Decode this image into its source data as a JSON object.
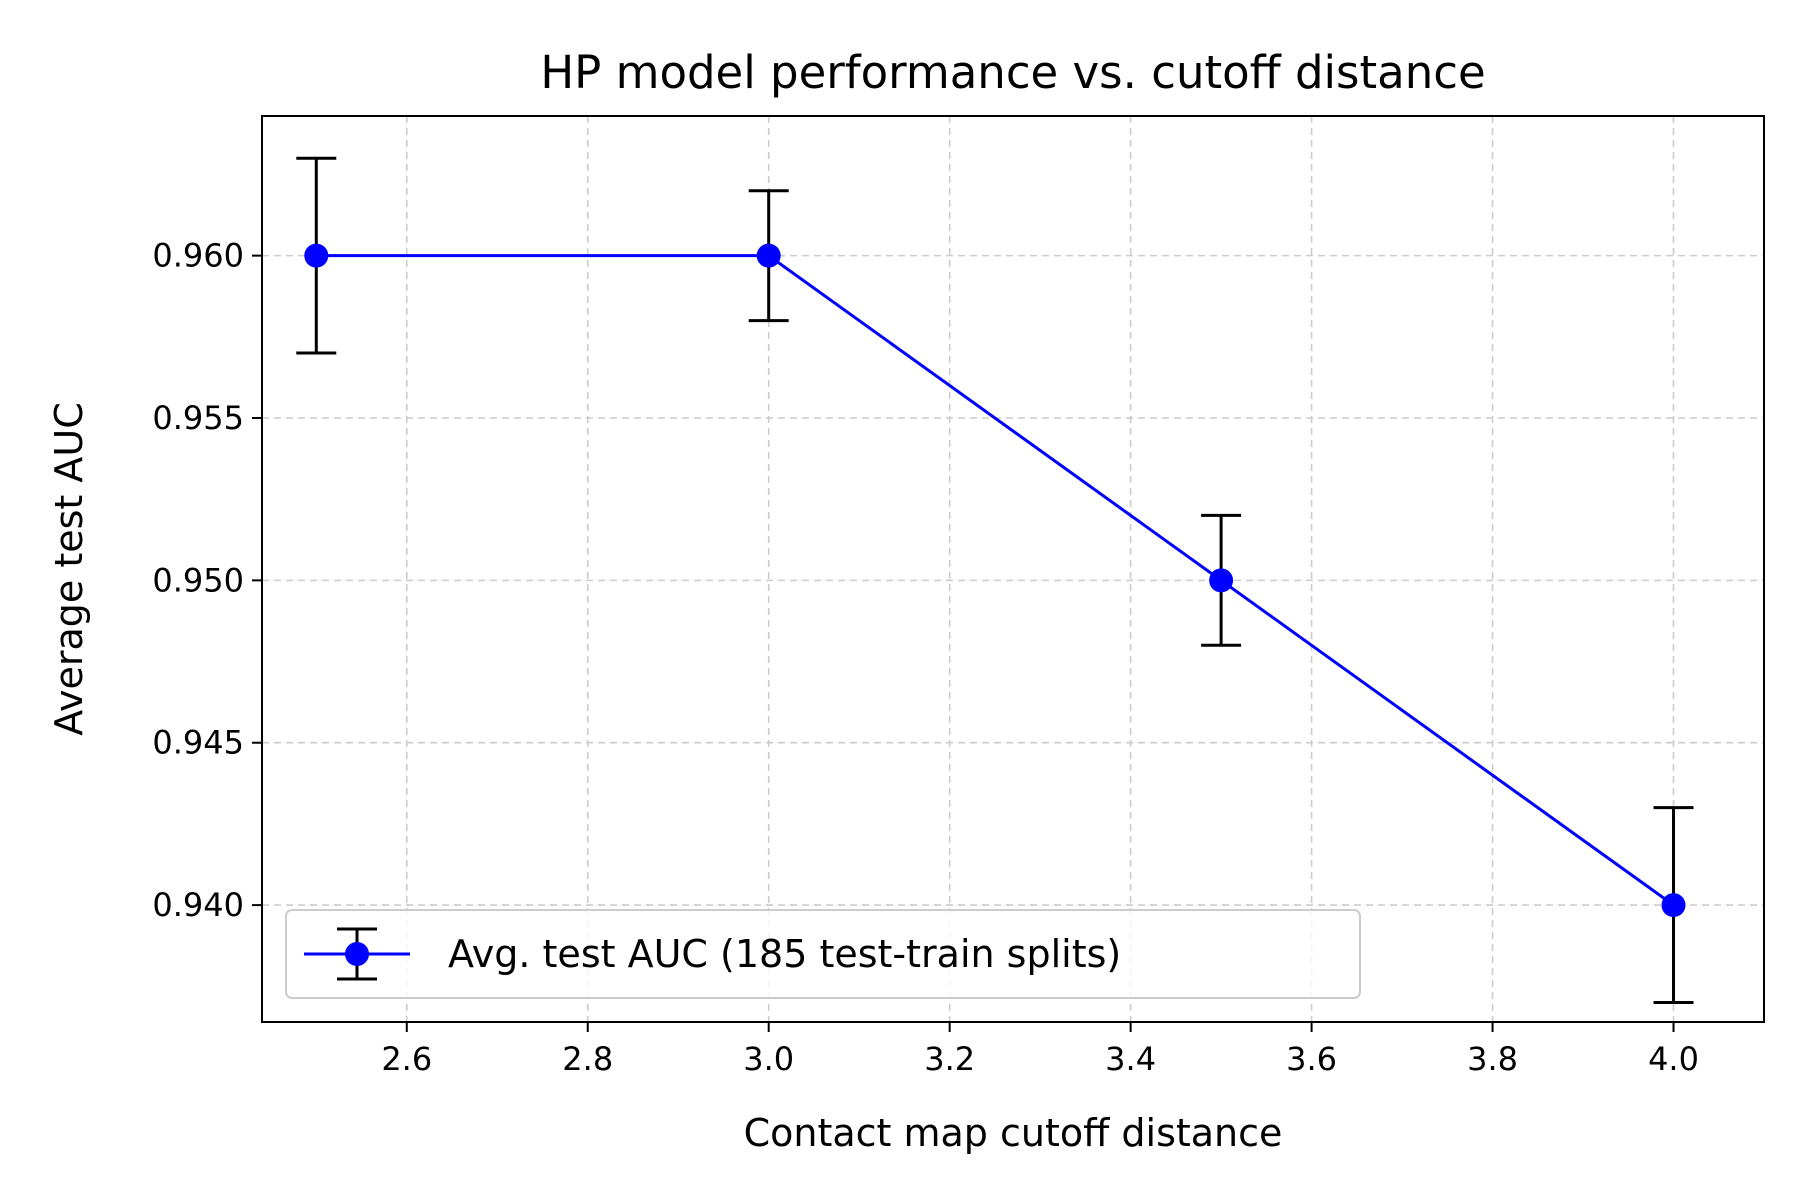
{
  "chart_data": {
    "type": "line",
    "title": "HP model performance vs. cutoff distance",
    "xlabel": "Contact map cutoff distance",
    "ylabel": "Average test AUC",
    "xlim": [
      2.44,
      4.1
    ],
    "ylim": [
      0.9364,
      0.9643
    ],
    "x_ticks": [
      2.6,
      2.8,
      3.0,
      3.2,
      3.4,
      3.6,
      3.8,
      4.0
    ],
    "x_tick_labels": [
      "2.6",
      "2.8",
      "3.0",
      "3.2",
      "3.4",
      "3.6",
      "3.8",
      "4.0"
    ],
    "y_ticks": [
      0.94,
      0.945,
      0.95,
      0.955,
      0.96
    ],
    "y_tick_labels": [
      "0.940",
      "0.945",
      "0.950",
      "0.955",
      "0.960"
    ],
    "grid": true,
    "legend_position": "lower-left",
    "series": [
      {
        "name": "Avg. test AUC (185 test-train splits)",
        "color": "#0000ff",
        "marker": "circle",
        "error_color": "#000000",
        "x": [
          2.5,
          3.0,
          3.5,
          4.0
        ],
        "y": [
          0.96,
          0.96,
          0.95,
          0.94
        ],
        "yerr": [
          0.003,
          0.002,
          0.002,
          0.003
        ]
      }
    ]
  }
}
